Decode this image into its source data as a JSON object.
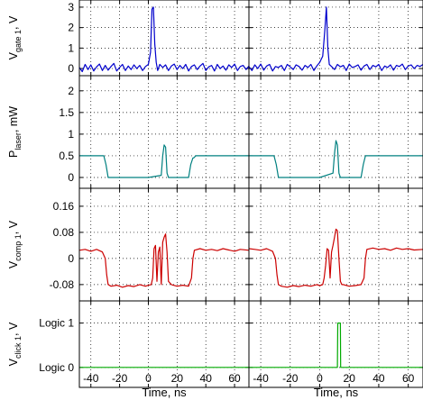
{
  "chart_data": {
    "type": "line",
    "xlabel": "Time, ns",
    "xlim": [
      -48,
      70
    ],
    "xticks": [
      -40,
      -20,
      0,
      20,
      40,
      60
    ],
    "columns": 2,
    "grid": true,
    "panels": [
      {
        "id": "gate",
        "ylabel_main": "V",
        "ylabel_sub": "gate 1",
        "ylabel_tail": ", V",
        "ylim": [
          -0.35,
          3.35
        ],
        "yticks": [
          {
            "v": 0,
            "label": "0"
          },
          {
            "v": 1,
            "label": "1"
          },
          {
            "v": 2,
            "label": "2"
          },
          {
            "v": 3,
            "label": "3"
          }
        ],
        "color": "#0000cc",
        "series": [
          {
            "x": [
              -48,
              -46,
              -44,
              -42,
              -40,
              -38,
              -36,
              -34,
              -32,
              -30,
              -28,
              -26,
              -24,
              -22,
              -20,
              -18,
              -16,
              -14,
              -12,
              -10,
              -8,
              -6,
              -4,
              -2,
              0,
              1.5,
              2.5,
              3.5,
              4.5,
              5.5,
              6.5,
              8,
              10,
              12,
              14,
              16,
              18,
              20,
              22,
              24,
              26,
              28,
              30,
              32,
              34,
              36,
              38,
              40,
              42,
              44,
              46,
              48,
              50,
              52,
              54,
              56,
              58,
              60,
              62,
              64,
              66,
              68,
              70
            ],
            "y": [
              0.05,
              -0.15,
              0.2,
              -0.05,
              0.18,
              -0.12,
              0.08,
              0.22,
              -0.1,
              0.15,
              -0.08,
              0.1,
              0.25,
              -0.12,
              0.05,
              0.2,
              -0.1,
              0.12,
              -0.05,
              0.18,
              0.0,
              0.15,
              -0.1,
              0.1,
              0.2,
              0.8,
              2.9,
              3.0,
              1.2,
              0.3,
              -0.1,
              0.2,
              0.05,
              0.18,
              -0.1,
              0.12,
              0.22,
              -0.05,
              0.15,
              0.0,
              0.2,
              -0.12,
              0.1,
              0.18,
              -0.05,
              0.12,
              0.25,
              -0.1,
              0.08,
              0.15,
              -0.12,
              0.2,
              0.0,
              0.12,
              -0.08,
              0.18,
              0.05,
              0.22,
              -0.1,
              0.1,
              0.15,
              -0.05,
              0.12
            ]
          },
          {
            "x": [
              -48,
              -46,
              -44,
              -42,
              -40,
              -38,
              -36,
              -34,
              -32,
              -30,
              -28,
              -26,
              -24,
              -22,
              -20,
              -18,
              -16,
              -14,
              -12,
              -10,
              -8,
              -6,
              -4,
              -2,
              0,
              2,
              3.5,
              4.5,
              5.5,
              6.5,
              8,
              10,
              12,
              14,
              16,
              18,
              20,
              22,
              24,
              26,
              28,
              30,
              32,
              34,
              36,
              38,
              40,
              42,
              44,
              46,
              48,
              50,
              52,
              54,
              56,
              58,
              60,
              62,
              64,
              66,
              68,
              70
            ],
            "y": [
              0.1,
              -0.1,
              0.18,
              0.0,
              0.22,
              -0.08,
              0.12,
              0.2,
              -0.12,
              0.1,
              0.05,
              0.15,
              -0.1,
              0.2,
              0.08,
              -0.05,
              0.18,
              0.1,
              -0.08,
              0.15,
              0.05,
              0.2,
              -0.1,
              0.12,
              0.3,
              0.6,
              1.9,
              3.0,
              1.0,
              0.2,
              0.1,
              -0.05,
              0.2,
              0.08,
              0.15,
              -0.1,
              0.22,
              0.05,
              0.1,
              0.18,
              -0.08,
              0.12,
              0.2,
              -0.05,
              0.15,
              0.08,
              0.2,
              -0.1,
              0.12,
              0.05,
              0.18,
              -0.08,
              0.15,
              0.1,
              0.22,
              -0.05,
              0.12,
              0.18,
              0.0,
              0.15,
              0.1,
              0.2
            ]
          }
        ]
      },
      {
        "id": "laser",
        "ylabel_main": "P",
        "ylabel_sub": "laser",
        "ylabel_tail": ", mW",
        "ylim": [
          -0.25,
          2.35
        ],
        "yticks": [
          {
            "v": 0,
            "label": "0"
          },
          {
            "v": 0.5,
            "label": "0.5"
          },
          {
            "v": 1,
            "label": "1"
          },
          {
            "v": 1.5,
            "label": "1.5"
          },
          {
            "v": 2,
            "label": "2"
          }
        ],
        "color": "#008080",
        "series": [
          {
            "x": [
              -48,
              -31,
              -29.5,
              -28,
              -20,
              0,
              9,
              10,
              11,
              12,
              13,
              14,
              20,
              28,
              29.5,
              31,
              31.5,
              33,
              40,
              70
            ],
            "y": [
              0.5,
              0.5,
              0.3,
              0.0,
              0.0,
              0.0,
              0.05,
              0.5,
              0.75,
              0.7,
              0.1,
              0.0,
              0.0,
              0.0,
              0.3,
              0.45,
              0.45,
              0.5,
              0.5,
              0.5
            ]
          },
          {
            "x": [
              -48,
              -31,
              -29.5,
              -28,
              -20,
              0,
              9,
              10,
              11,
              12,
              13,
              14,
              20,
              28,
              29.5,
              31,
              32,
              40,
              70
            ],
            "y": [
              0.5,
              0.5,
              0.3,
              0.0,
              0.0,
              0.0,
              0.1,
              0.55,
              0.85,
              0.75,
              0.1,
              0.0,
              0.0,
              0.0,
              0.3,
              0.5,
              0.5,
              0.5,
              0.5
            ]
          }
        ]
      },
      {
        "id": "comp",
        "ylabel_main": "V",
        "ylabel_sub": "comp 1",
        "ylabel_tail": ", V",
        "ylim": [
          -0.13,
          0.215
        ],
        "yticks": [
          {
            "v": -0.08,
            "label": "-0.08"
          },
          {
            "v": 0,
            "label": "0"
          },
          {
            "v": 0.08,
            "label": "0.08"
          },
          {
            "v": 0.16,
            "label": "0.16"
          }
        ],
        "color": "#cc0000",
        "series": [
          {
            "x": [
              -48,
              -44,
              -40,
              -36,
              -32,
              -30,
              -29,
              -28,
              -26,
              -22,
              -18,
              -14,
              -10,
              -6,
              -2,
              0,
              2,
              3,
              4,
              5,
              6,
              7,
              8,
              9,
              10,
              11,
              12,
              13,
              14,
              15,
              16,
              20,
              24,
              28,
              30,
              31,
              32,
              36,
              40,
              44,
              48,
              52,
              56,
              60,
              64,
              70
            ],
            "y": [
              0.025,
              0.028,
              0.022,
              0.028,
              0.02,
              0.0,
              -0.05,
              -0.08,
              -0.085,
              -0.082,
              -0.088,
              -0.083,
              -0.086,
              -0.08,
              -0.085,
              -0.082,
              -0.08,
              -0.06,
              0.03,
              0.04,
              -0.07,
              0.02,
              0.035,
              -0.08,
              0.05,
              0.065,
              0.075,
              0.02,
              -0.07,
              -0.075,
              -0.08,
              -0.085,
              -0.082,
              -0.085,
              -0.06,
              0.0,
              0.025,
              0.03,
              0.025,
              0.028,
              0.024,
              0.03,
              0.026,
              0.022,
              0.028,
              0.025
            ]
          },
          {
            "x": [
              -48,
              -44,
              -40,
              -36,
              -32,
              -30,
              -29,
              -28,
              -26,
              -22,
              -18,
              -14,
              -10,
              -6,
              -2,
              0,
              2,
              3,
              4,
              5,
              6,
              7,
              8,
              9,
              10,
              11,
              12,
              13,
              14,
              15,
              16,
              20,
              24,
              28,
              30,
              31,
              32,
              36,
              40,
              44,
              48,
              52,
              56,
              60,
              64,
              70
            ],
            "y": [
              0.03,
              0.028,
              0.025,
              0.03,
              0.022,
              0.0,
              -0.05,
              -0.08,
              -0.085,
              -0.088,
              -0.083,
              -0.086,
              -0.082,
              -0.085,
              -0.08,
              -0.083,
              -0.08,
              -0.06,
              -0.02,
              0.03,
              0.025,
              -0.06,
              0.02,
              0.04,
              0.065,
              0.09,
              0.085,
              0.0,
              -0.07,
              -0.08,
              -0.08,
              -0.085,
              -0.083,
              -0.08,
              -0.06,
              0.0,
              0.028,
              0.032,
              0.028,
              0.03,
              0.025,
              0.032,
              0.028,
              0.03,
              0.026,
              0.028
            ]
          }
        ]
      },
      {
        "id": "click",
        "ylabel_main": "V",
        "ylabel_sub": "click 1",
        "ylabel_tail": ", V",
        "ylim": [
          -0.45,
          1.5
        ],
        "yticks": [
          {
            "v": 0,
            "label": "Logic 0"
          },
          {
            "v": 1,
            "label": "Logic 1"
          }
        ],
        "color": "#00aa00",
        "series": [
          {
            "x": [
              -48,
              70
            ],
            "y": [
              0,
              0
            ]
          },
          {
            "x": [
              -48,
              12,
              12.2,
              14,
              14.2,
              70
            ],
            "y": [
              0,
              0,
              1,
              1,
              0,
              0
            ]
          }
        ]
      }
    ]
  }
}
